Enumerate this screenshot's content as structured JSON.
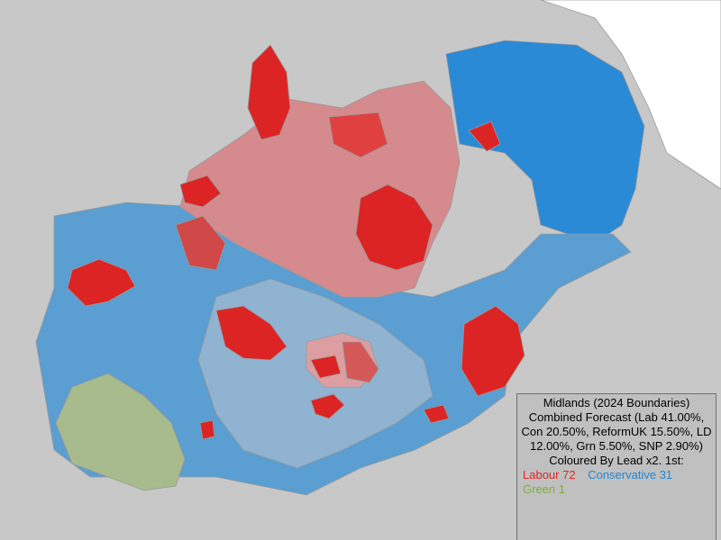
{
  "legend": {
    "title": "Midlands (2024 Boundaries)",
    "forecast": "Combined Forecast (Lab 41.00%, Con 20.50%, ReformUK 15.50%, LD 12.00%, Grn 5.50%, SNP 2.90%)",
    "colouring": "Coloured By Lead x2. 1st:",
    "parties": [
      {
        "name": "Labour",
        "seats": 72,
        "color": "#e02424"
      },
      {
        "name": "Conservative",
        "seats": 31,
        "color": "#1e88d8"
      },
      {
        "name": "Green",
        "seats": 1,
        "color": "#7fae3f"
      }
    ]
  }
}
